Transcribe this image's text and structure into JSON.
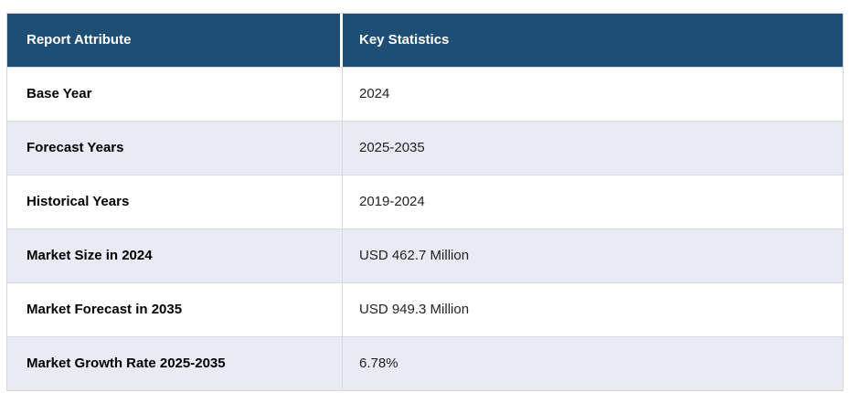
{
  "table": {
    "header": {
      "attribute_label": "Report Attribute",
      "statistics_label": "Key Statistics"
    },
    "rows": [
      {
        "attribute": "Base Year",
        "value": "2024"
      },
      {
        "attribute": "Forecast Years",
        "value": "2025-2035"
      },
      {
        "attribute": "Historical Years",
        "value": "2019-2024"
      },
      {
        "attribute": "Market Size in 2024",
        "value": "USD 462.7 Million"
      },
      {
        "attribute": "Market Forecast in 2035",
        "value": "USD 949.3 Million"
      },
      {
        "attribute": "Market Growth Rate 2025-2035",
        "value": "6.78%"
      }
    ],
    "colors": {
      "header_bg": "#1f4e74",
      "header_text": "#ffffff",
      "alt_row_bg": "#e8eaf4",
      "row_bg": "#ffffff",
      "border": "#d9d9e0",
      "attribute_text": "#000000",
      "value_text": "#222222"
    }
  }
}
